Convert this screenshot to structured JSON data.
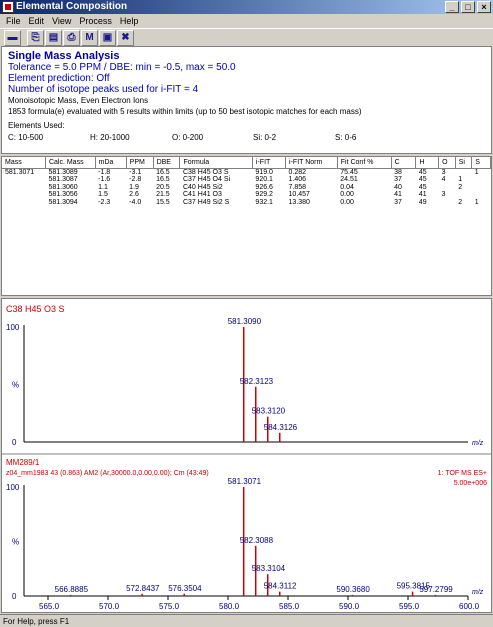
{
  "window": {
    "title": "Elemental Composition"
  },
  "menu": [
    "File",
    "Edit",
    "View",
    "Process",
    "Help"
  ],
  "toolbar": {
    "buttons": [
      {
        "name": "save-icon",
        "glyph": "▬"
      },
      {
        "name": "copy-icon",
        "glyph": "⎘"
      },
      {
        "name": "paste-icon",
        "glyph": "▤"
      },
      {
        "name": "print-icon",
        "glyph": "⎙"
      },
      {
        "name": "m-icon",
        "glyph": "M"
      },
      {
        "name": "window-icon",
        "glyph": "▣"
      },
      {
        "name": "cross-icon",
        "glyph": "✖"
      }
    ]
  },
  "info": {
    "title": "Single Mass Analysis",
    "tolerance": "Tolerance = 5.0 PPM   /   DBE: min = -0.5, max = 50.0",
    "element_prediction": "Element prediction: Off",
    "isotope_peaks": "Number of isotope peaks used for i-FIT = 4",
    "ion_type": "Monoisotopic Mass, Even Electron Ions",
    "evaluated": "1853 formula(e) evaluated with 5 results within limits (up to 50 best isotopic matches for each mass)",
    "elements_used_label": "Elements Used:",
    "elements": [
      "C: 10-500",
      "H: 20-1000",
      "O: 0-200",
      "Si: 0-2",
      "S: 0-6"
    ]
  },
  "results": {
    "columns": [
      "Mass",
      "Calc. Mass",
      "mDa",
      "PPM",
      "DBE",
      "Formula",
      "i-FIT",
      "i-FIT Norm",
      "Fit Conf %",
      "C",
      "H",
      "O",
      "Si",
      "S"
    ],
    "rows": [
      [
        "581.3071",
        "581.3089",
        "-1.8",
        "-3.1",
        "16.5",
        "C38 H45 O3 S",
        "919.0",
        "0.282",
        "75.45",
        "38",
        "45",
        "3",
        "",
        "1"
      ],
      [
        "",
        "581.3087",
        "-1.6",
        "-2.8",
        "16.5",
        "C37 H45 O4 Si",
        "920.1",
        "1.406",
        "24.51",
        "37",
        "45",
        "4",
        "1",
        ""
      ],
      [
        "",
        "581.3060",
        "1.1",
        "1.9",
        "20.5",
        "C40 H45 Si2",
        "926.6",
        "7.858",
        "0.04",
        "40",
        "45",
        "",
        "2",
        ""
      ],
      [
        "",
        "581.3056",
        "1.5",
        "2.6",
        "21.5",
        "C41 H41 O3",
        "929.2",
        "10.457",
        "0.00",
        "41",
        "41",
        "3",
        "",
        ""
      ],
      [
        "",
        "581.3094",
        "-2.3",
        "-4.0",
        "15.5",
        "C37 H49 Si2 S",
        "932.1",
        "13.380",
        "0.00",
        "37",
        "49",
        "",
        "2",
        "1"
      ]
    ]
  },
  "spectrum_top": {
    "label": "C38 H45 O3 S",
    "y_top": "100",
    "y_zero": "0",
    "y_unit": "%",
    "x_unit": "m/z",
    "peaks": [
      {
        "mz": 581.309,
        "rel": 100,
        "label": "581.3090"
      },
      {
        "mz": 582.3123,
        "rel": 48,
        "label": "582.3123"
      },
      {
        "mz": 583.312,
        "rel": 22,
        "label": "583.3120"
      },
      {
        "mz": 584.3126,
        "rel": 8,
        "label": "584.3126"
      }
    ]
  },
  "spectrum_bottom": {
    "sample": "MM289/1",
    "scan_info": "z04_mm1983 43 (0.863) AM2 (Ar,30000.0,0.00,0.00); Cm (43:49)",
    "mode": "1: TOF MS ES+",
    "intensity": "5.00e+006",
    "y_top": "100",
    "y_zero": "0",
    "y_unit": "%",
    "x_unit": "m/z",
    "peaks": [
      {
        "mz": 581.3071,
        "rel": 100,
        "label": "581.3071"
      },
      {
        "mz": 582.3088,
        "rel": 46,
        "label": "582.3088"
      },
      {
        "mz": 583.3104,
        "rel": 20,
        "label": "583.3104"
      },
      {
        "mz": 584.3112,
        "rel": 4,
        "label": "584.3112"
      },
      {
        "mz": 566.8885,
        "rel": 1,
        "label": "566.8885"
      },
      {
        "mz": 572.8437,
        "rel": 2,
        "label": "572.8437"
      },
      {
        "mz": 576.3504,
        "rel": 2,
        "label": "576.3504"
      },
      {
        "mz": 590.368,
        "rel": 1,
        "label": "590.3680"
      },
      {
        "mz": 595.3815,
        "rel": 4,
        "label": "595.3815"
      },
      {
        "mz": 597.2799,
        "rel": 1,
        "label": "597.2799"
      }
    ],
    "x_ticks": [
      "565.0",
      "570.0",
      "575.0",
      "580.0",
      "585.0",
      "590.0",
      "595.0",
      "600.0"
    ],
    "x_range": [
      563.0,
      600.0
    ]
  },
  "status": "For Help, press F1",
  "colors": {
    "spectrum_red": "#cc0000",
    "text_blue": "#0000c0",
    "label_blue": "#000080"
  }
}
